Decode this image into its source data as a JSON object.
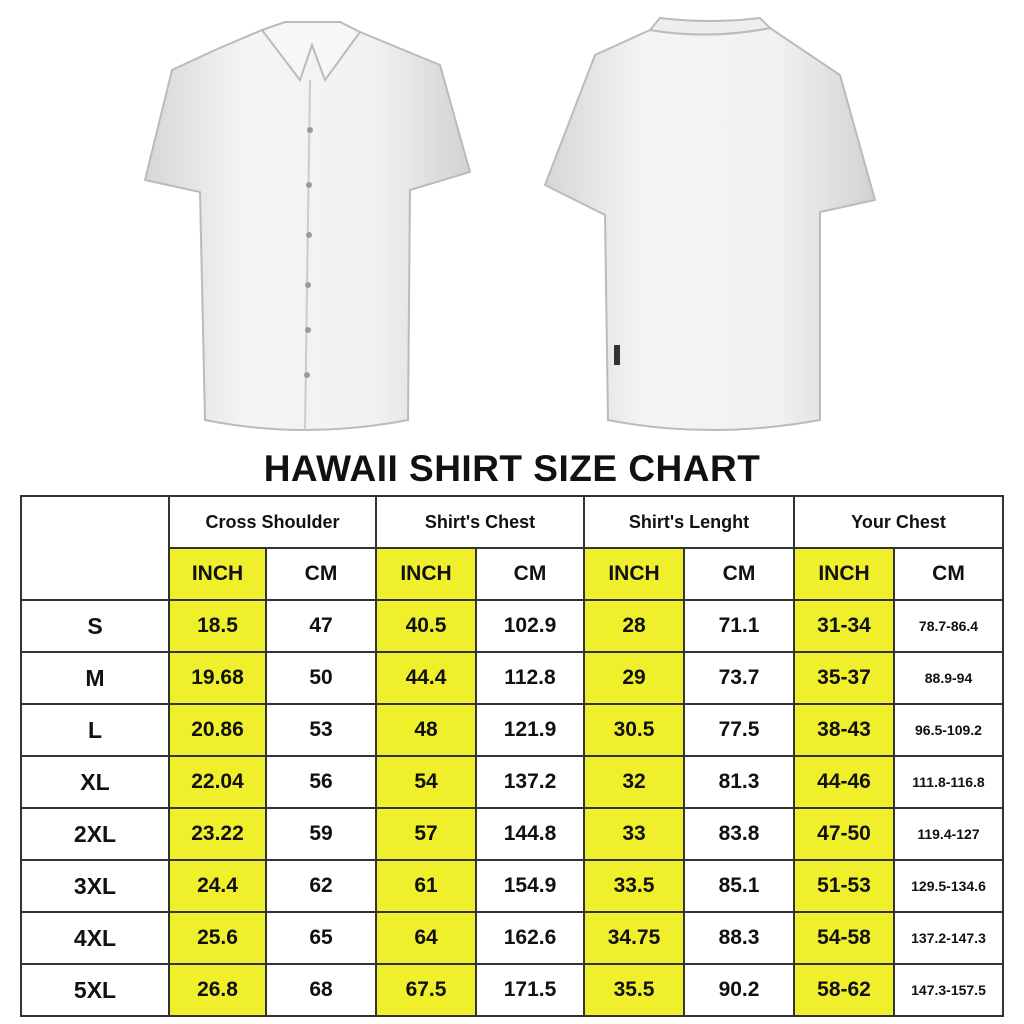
{
  "title": "HAWAII SHIRT SIZE CHART",
  "colors": {
    "inch_highlight": "#f0ef2c",
    "border": "#333333"
  },
  "images": [
    "white-short-sleeve-shirt-front",
    "white-short-sleeve-shirt-back"
  ],
  "table": {
    "groups": [
      "Cross Shoulder",
      "Shirt's Chest",
      "Shirt's Lenght",
      "Your Chest"
    ],
    "units": [
      "INCH",
      "CM",
      "INCH",
      "CM",
      "INCH",
      "CM",
      "INCH",
      "CM"
    ],
    "rows": [
      {
        "size": "S",
        "values": [
          "18.5",
          "47",
          "40.5",
          "102.9",
          "28",
          "71.1",
          "31-34",
          "78.7-86.4"
        ]
      },
      {
        "size": "M",
        "values": [
          "19.68",
          "50",
          "44.4",
          "112.8",
          "29",
          "73.7",
          "35-37",
          "88.9-94"
        ]
      },
      {
        "size": "L",
        "values": [
          "20.86",
          "53",
          "48",
          "121.9",
          "30.5",
          "77.5",
          "38-43",
          "96.5-109.2"
        ]
      },
      {
        "size": "XL",
        "values": [
          "22.04",
          "56",
          "54",
          "137.2",
          "32",
          "81.3",
          "44-46",
          "111.8-116.8"
        ]
      },
      {
        "size": "2XL",
        "values": [
          "23.22",
          "59",
          "57",
          "144.8",
          "33",
          "83.8",
          "47-50",
          "119.4-127"
        ]
      },
      {
        "size": "3XL",
        "values": [
          "24.4",
          "62",
          "61",
          "154.9",
          "33.5",
          "85.1",
          "51-53",
          "129.5-134.6"
        ]
      },
      {
        "size": "4XL",
        "values": [
          "25.6",
          "65",
          "64",
          "162.6",
          "34.75",
          "88.3",
          "54-58",
          "137.2-147.3"
        ]
      },
      {
        "size": "5XL",
        "values": [
          "26.8",
          "68",
          "67.5",
          "171.5",
          "35.5",
          "90.2",
          "58-62",
          "147.3-157.5"
        ]
      }
    ]
  }
}
